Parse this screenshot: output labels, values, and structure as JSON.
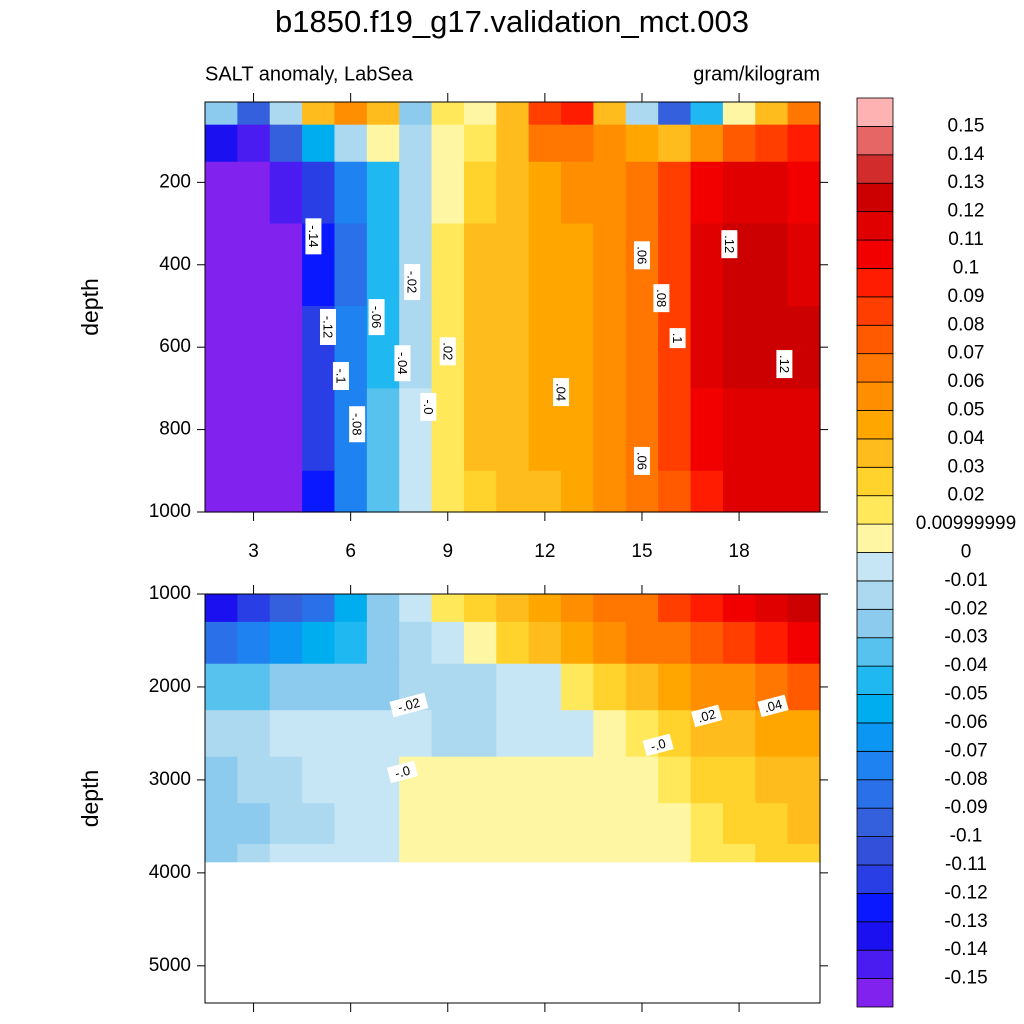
{
  "chart_data": {
    "type": "contour",
    "title": "b1850.f19_g17.validation_mct.003",
    "subtitle_left": "SALT anomaly, LabSea",
    "subtitle_right": "gram/kilogram",
    "x": [
      2,
      3,
      4,
      5,
      6,
      7,
      8,
      9,
      10,
      11,
      12,
      13,
      14,
      15,
      16,
      17,
      18,
      19,
      20
    ],
    "xlim": [
      1.5,
      20.5
    ],
    "xticks": [
      3,
      6,
      9,
      12,
      15,
      18
    ],
    "levels": [
      -0.15,
      -0.14,
      -0.13,
      -0.12,
      -0.11,
      -0.1,
      -0.09,
      -0.08,
      -0.07,
      -0.06,
      -0.05,
      -0.04,
      -0.03,
      -0.02,
      -0.01,
      0,
      {
        "value": 0.01,
        "label": "0.00999999"
      },
      0.02,
      0.03,
      0.04,
      0.05,
      0.06,
      0.07,
      0.08,
      0.09,
      0.1,
      0.11,
      0.12,
      0.13,
      0.14,
      0.15
    ],
    "colors": [
      "#8222ee",
      "#4a1cf2",
      "#1a10f0",
      "#0a18ff",
      "#2a3ee6",
      "#3350da",
      "#3460de",
      "#2a70e8",
      "#1e82f0",
      "#0a96f2",
      "#00aef0",
      "#20b8f0",
      "#58c2ee",
      "#8ccbee",
      "#acd9f0",
      "#c6e6f5",
      "#fff6a4",
      "#ffe85a",
      "#ffd22c",
      "#ffbc1c",
      "#ffa600",
      "#ff8e00",
      "#ff7600",
      "#ff5a00",
      "#ff3e00",
      "#ff1c00",
      "#f20000",
      "#e00000",
      "#cc0000",
      "#d22c2c",
      "#e66666",
      "#ffb2b2"
    ],
    "panels": [
      {
        "ylabel": "depth",
        "ylim": [
          1000,
          5
        ],
        "yticks": [
          200,
          400,
          600,
          800,
          1000
        ],
        "depth": [
          20,
          100,
          200,
          400,
          600,
          800,
          1000
        ],
        "z": [
          [
            -0.03,
            -0.1,
            -0.02,
            0.03,
            0.05,
            0.03,
            -0.03,
            0.01,
            0.0,
            0.03,
            0.08,
            0.09,
            0.03,
            -0.02,
            -0.1,
            -0.05,
            0.0,
            0.03,
            0.06
          ],
          [
            -0.14,
            -0.15,
            -0.1,
            -0.06,
            -0.02,
            0.0,
            -0.02,
            0.005,
            0.015,
            0.03,
            0.06,
            0.06,
            0.05,
            0.04,
            0.03,
            0.05,
            0.07,
            0.08,
            0.09
          ],
          [
            -0.16,
            -0.16,
            -0.15,
            -0.12,
            -0.08,
            -0.05,
            -0.02,
            0.005,
            0.025,
            0.035,
            0.045,
            0.05,
            0.055,
            0.065,
            0.08,
            0.1,
            0.115,
            0.11,
            0.1
          ],
          [
            -0.16,
            -0.16,
            -0.16,
            -0.13,
            -0.09,
            -0.05,
            -0.02,
            0.015,
            0.03,
            0.035,
            0.04,
            0.045,
            0.055,
            0.065,
            0.085,
            0.11,
            0.125,
            0.12,
            0.115
          ],
          [
            -0.16,
            -0.16,
            -0.16,
            -0.12,
            -0.08,
            -0.05,
            -0.02,
            0.01,
            0.03,
            0.035,
            0.04,
            0.045,
            0.055,
            0.065,
            0.085,
            0.11,
            0.125,
            0.125,
            0.12
          ],
          [
            -0.16,
            -0.16,
            -0.16,
            -0.12,
            -0.08,
            -0.04,
            -0.01,
            0.01,
            0.03,
            0.035,
            0.04,
            0.045,
            0.055,
            0.065,
            0.08,
            0.1,
            0.115,
            0.115,
            0.115
          ],
          [
            -0.16,
            -0.16,
            -0.16,
            -0.13,
            -0.08,
            -0.04,
            -0.01,
            0.01,
            0.025,
            0.03,
            0.035,
            0.045,
            0.05,
            0.06,
            0.075,
            0.095,
            0.11,
            0.115,
            0.115
          ]
        ],
        "labels": [
          {
            "value": -0.14,
            "label": "-.14",
            "x": 4.85,
            "depth": 331
          },
          {
            "value": -0.12,
            "label": "-.12",
            "x": 5.3,
            "depth": 551
          },
          {
            "value": -0.1,
            "label": "-.1",
            "x": 5.7,
            "depth": 670
          },
          {
            "value": -0.08,
            "label": "-.08",
            "x": 6.2,
            "depth": 787
          },
          {
            "value": -0.06,
            "label": "-.06",
            "x": 6.8,
            "depth": 527
          },
          {
            "value": -0.04,
            "label": "-.04",
            "x": 7.6,
            "depth": 639
          },
          {
            "value": -0.02,
            "label": "-.02",
            "x": 7.9,
            "depth": 442
          },
          {
            "value": 0,
            "label": "-.0",
            "x": 8.4,
            "depth": 745
          },
          {
            "value": 0.02,
            "label": ".02",
            "x": 9.0,
            "depth": 610
          },
          {
            "value": 0.04,
            "label": ".04",
            "x": 12.5,
            "depth": 709
          },
          {
            "value": 0.06,
            "label": ".06",
            "x": 15.0,
            "depth": 377
          },
          {
            "value": 0.06,
            "label": ".06",
            "x": 15.0,
            "depth": 876
          },
          {
            "value": 0.08,
            "label": ".08",
            "x": 15.6,
            "depth": 481
          },
          {
            "value": 0.1,
            "label": ".1",
            "x": 16.1,
            "depth": 578
          },
          {
            "value": 0.12,
            "label": ".12",
            "x": 17.7,
            "depth": 350
          },
          {
            "value": 0.12,
            "label": ".12",
            "x": 19.4,
            "depth": 641
          }
        ]
      },
      {
        "ylabel": "depth",
        "ylim": [
          5400,
          1000
        ],
        "yticks": [
          1000,
          2000,
          3000,
          4000,
          5000
        ],
        "depth": [
          1100,
          1500,
          2000,
          2500,
          3000,
          3500,
          3880
        ],
        "z": [
          [
            -0.14,
            -0.12,
            -0.1,
            -0.09,
            -0.06,
            -0.03,
            -0.01,
            0.01,
            0.02,
            0.03,
            0.04,
            0.05,
            0.06,
            0.065,
            0.08,
            0.09,
            0.1,
            0.11,
            0.12
          ],
          [
            -0.09,
            -0.08,
            -0.07,
            -0.06,
            -0.05,
            -0.03,
            -0.02,
            -0.01,
            0.005,
            0.02,
            0.03,
            0.04,
            0.05,
            0.06,
            0.065,
            0.07,
            0.08,
            0.09,
            0.1
          ],
          [
            -0.04,
            -0.035,
            -0.03,
            -0.03,
            -0.025,
            -0.025,
            -0.02,
            -0.02,
            -0.015,
            -0.01,
            -0.005,
            0.01,
            0.02,
            0.03,
            0.04,
            0.05,
            0.055,
            0.06,
            0.07
          ],
          [
            -0.02,
            -0.015,
            -0.01,
            -0.01,
            -0.01,
            -0.01,
            -0.01,
            -0.015,
            -0.015,
            -0.01,
            -0.005,
            -0.005,
            0.0,
            0.01,
            0.02,
            0.03,
            0.035,
            0.04,
            0.045
          ],
          [
            -0.025,
            -0.02,
            -0.015,
            -0.01,
            -0.005,
            -0.005,
            0.005,
            0.005,
            0.005,
            0.005,
            0.005,
            0.005,
            0.005,
            0.005,
            0.015,
            0.02,
            0.025,
            0.03,
            0.03
          ],
          [
            -0.03,
            -0.025,
            -0.02,
            -0.015,
            -0.005,
            -0.005,
            0.005,
            0.005,
            0.005,
            0.005,
            0.005,
            0.005,
            0.005,
            0.005,
            0.005,
            0.01,
            0.02,
            0.025,
            0.03
          ],
          [
            -0.03,
            -0.02,
            -0.01,
            -0.005,
            -0.005,
            -0.005,
            0.005,
            0.005,
            0.005,
            0.005,
            0.005,
            0.005,
            0.005,
            0.005,
            0.005,
            0.01,
            0.015,
            0.02,
            0.025
          ]
        ],
        "labels": [
          {
            "value": -0.02,
            "label": "-.02",
            "x": 7.8,
            "depth": 2194
          },
          {
            "value": 0,
            "label": "-.0",
            "x": 7.6,
            "depth": 2914
          },
          {
            "value": 0,
            "label": "-.0",
            "x": 15.5,
            "depth": 2624
          },
          {
            "value": 0.02,
            "label": ".02",
            "x": 17.0,
            "depth": 2312
          },
          {
            "value": 0.04,
            "label": ".04",
            "x": 19.05,
            "depth": 2204
          }
        ]
      }
    ]
  }
}
